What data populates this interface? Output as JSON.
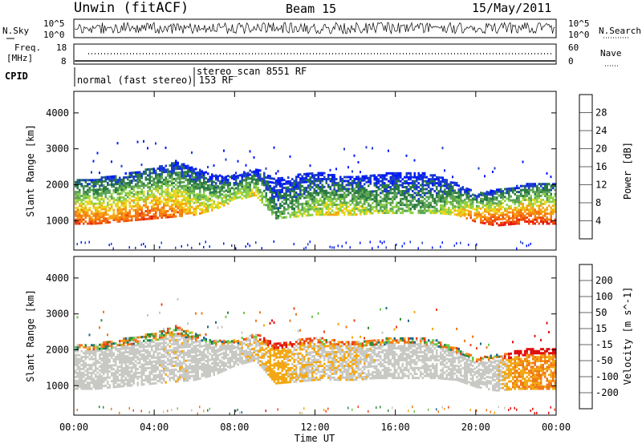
{
  "header": {
    "station": "Unwin (fitACF)",
    "beam": "Beam 15",
    "date": "15/May/2011"
  },
  "noise_panel": {
    "left_label": "N.Sky",
    "right_label": "N.Search",
    "left_ticks": [
      "10^5",
      "10^0"
    ],
    "right_ticks": [
      "10^5",
      "10^0"
    ]
  },
  "freq_panel": {
    "left_label_1": "Freq.",
    "left_label_2": "[MHz]",
    "right_label": "Nave",
    "left_ticks": [
      "18",
      "8"
    ],
    "right_ticks": [
      "60",
      "0"
    ]
  },
  "cpid_panel": {
    "label": "CPID",
    "modes": [
      {
        "name": "normal (fast stereo) 153 RF",
        "start": "00:00"
      },
      {
        "name": "stereo_scan 8551 RF",
        "start": "06:00"
      }
    ]
  },
  "power_panel": {
    "ylabel": "Slant Range [km]",
    "yticks": [
      "4000",
      "3000",
      "2000",
      "1000"
    ],
    "colorbar_label": "Power [dB]",
    "colorbar_ticks": [
      "28",
      "24",
      "20",
      "16",
      "12",
      "8",
      "4"
    ],
    "colors": [
      "#0018ff",
      "#1c3ec8",
      "#2a7a44",
      "#5ea456",
      "#8cd04a",
      "#e6d820",
      "#f7a412",
      "#f57a10",
      "#ef4a10",
      "#e41a10"
    ]
  },
  "velocity_panel": {
    "ylabel": "Slant Range [km]",
    "yticks": [
      "4000",
      "3000",
      "2000",
      "1000"
    ],
    "colorbar_label": "Velocity [m s^-1]",
    "colorbar_ticks": [
      "200",
      "100",
      "50",
      "15",
      "-15",
      "-50",
      "-100",
      "-200"
    ],
    "colors": [
      "#1428d8",
      "#1c6a8c",
      "#2f8a3a",
      "#6cc84a",
      "#c8c8c4",
      "#f2a814",
      "#f07818",
      "#ec4416",
      "#e01010"
    ]
  },
  "x_axis": {
    "xlabel": "Time UT",
    "ticks": [
      "00:00",
      "04:00",
      "08:00",
      "12:00",
      "16:00",
      "20:00",
      "00:00"
    ]
  },
  "chart_data": [
    {
      "type": "heatmap",
      "title": "Beam 15",
      "xlabel": "Time UT",
      "ylabel": "Slant Range [km]",
      "xlim": [
        "00:00",
        "24:00"
      ],
      "ylim": [
        180,
        4600
      ],
      "colorbar_label": "Power [dB]",
      "colorbar_range": [
        0,
        32
      ],
      "x": [
        "00:00",
        "01:00",
        "02:00",
        "03:00",
        "04:00",
        "05:00",
        "06:00",
        "07:00",
        "08:00",
        "09:00",
        "10:00",
        "11:00",
        "12:00",
        "13:00",
        "14:00",
        "15:00",
        "16:00",
        "17:00",
        "18:00",
        "19:00",
        "20:00",
        "21:00",
        "22:00",
        "23:00"
      ],
      "band_low_km": [
        950,
        950,
        1000,
        1050,
        1100,
        1150,
        1200,
        1350,
        1600,
        1750,
        1100,
        1150,
        1200,
        1200,
        1200,
        1250,
        1250,
        1250,
        1250,
        1200,
        1000,
        900,
        950,
        950
      ],
      "band_high_km": [
        2200,
        2200,
        2300,
        2400,
        2500,
        2700,
        2500,
        2300,
        2300,
        2500,
        2200,
        2300,
        2400,
        2300,
        2300,
        2300,
        2400,
        2400,
        2300,
        2100,
        1800,
        1900,
        2000,
        2100
      ],
      "peak_power_db": [
        26,
        26,
        24,
        26,
        26,
        24,
        20,
        18,
        16,
        18,
        10,
        14,
        16,
        18,
        16,
        14,
        14,
        12,
        14,
        18,
        26,
        28,
        28,
        28
      ]
    },
    {
      "type": "heatmap",
      "title": "Beam 15",
      "xlabel": "Time UT",
      "ylabel": "Slant Range [km]",
      "xlim": [
        "00:00",
        "24:00"
      ],
      "ylim": [
        180,
        4600
      ],
      "colorbar_label": "Velocity [m s^-1]",
      "colorbar_range": [
        -250,
        250
      ],
      "x": [
        "00:00",
        "01:00",
        "02:00",
        "03:00",
        "04:00",
        "05:00",
        "06:00",
        "07:00",
        "08:00",
        "09:00",
        "10:00",
        "11:00",
        "12:00",
        "13:00",
        "14:00",
        "15:00",
        "16:00",
        "17:00",
        "18:00",
        "19:00",
        "20:00",
        "21:00",
        "22:00",
        "23:00"
      ],
      "band_low_km": [
        950,
        950,
        1000,
        1050,
        1100,
        1150,
        1200,
        1350,
        1600,
        1750,
        1100,
        1150,
        1200,
        1200,
        1200,
        1250,
        1250,
        1250,
        1250,
        1200,
        1000,
        900,
        950,
        950
      ],
      "band_high_km": [
        2200,
        2200,
        2300,
        2400,
        2500,
        2700,
        2500,
        2300,
        2300,
        2500,
        2200,
        2300,
        2400,
        2300,
        2300,
        2300,
        2400,
        2400,
        2300,
        2100,
        1800,
        1900,
        2000,
        2100
      ],
      "mean_velocity_ms": [
        0,
        0,
        0,
        0,
        0,
        -20,
        0,
        0,
        0,
        -40,
        -150,
        -60,
        -50,
        -40,
        -40,
        0,
        0,
        0,
        0,
        0,
        0,
        0,
        -200,
        -200
      ]
    }
  ]
}
